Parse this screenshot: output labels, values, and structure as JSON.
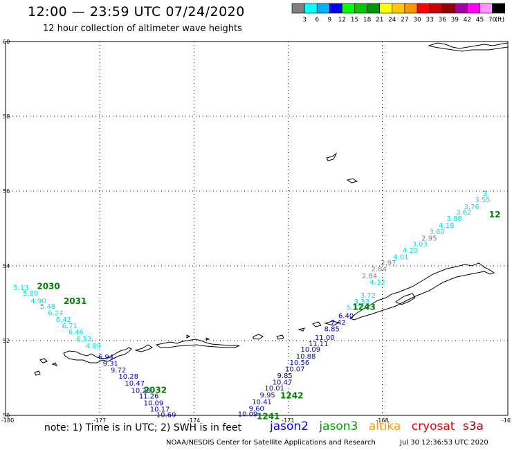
{
  "header": {
    "title": "12:00 — 23:59 UTC 07/24/2020",
    "subtitle": "12 hour collection of altimeter wave heights"
  },
  "colorbar": {
    "unit": "(ft)",
    "colors": [
      "#7f7f7f",
      "#00ffff",
      "#00b2ff",
      "#0000ff",
      "#00ff00",
      "#00c800",
      "#009600",
      "#ffff00",
      "#ffc800",
      "#ff9600",
      "#ff0000",
      "#c80000",
      "#960000",
      "#a000a0",
      "#ff00ff",
      "#ff96ff",
      "#000000"
    ],
    "labels": [
      "3",
      "6",
      "9",
      "12",
      "15",
      "18",
      "21",
      "24",
      "27",
      "30",
      "33",
      "36",
      "39",
      "42",
      "45",
      "70"
    ]
  },
  "map": {
    "lat_ticks": [
      "60",
      "58",
      "56",
      "54",
      "52",
      "50"
    ],
    "lon_ticks": [
      "-180",
      "-177",
      "-174",
      "-171",
      "-168",
      "-16"
    ]
  },
  "tracks": [
    {
      "color": "#00e0e0",
      "labels": [
        {
          "t": "5.13",
          "lon": -179.75,
          "lat": 53.35
        },
        {
          "t": "5.80",
          "lon": -179.45,
          "lat": 53.2
        },
        {
          "t": "4.90",
          "lon": -179.2,
          "lat": 53.0
        },
        {
          "t": "5.48",
          "lon": -178.9,
          "lat": 52.85
        },
        {
          "t": "6.24",
          "lon": -178.65,
          "lat": 52.68
        },
        {
          "t": "6.42",
          "lon": -178.4,
          "lat": 52.5
        },
        {
          "t": "6.71",
          "lon": -178.2,
          "lat": 52.33
        },
        {
          "t": "6.46",
          "lon": -178.0,
          "lat": 52.17
        },
        {
          "t": "6.53",
          "lon": -177.75,
          "lat": 51.98
        },
        {
          "t": "4.89",
          "lon": -177.45,
          "lat": 51.8
        }
      ]
    },
    {
      "color": "#0000c8",
      "labels": [
        {
          "t": "6.94",
          "lon": -177.05,
          "lat": 51.5
        },
        {
          "t": "9.31",
          "lon": -176.9,
          "lat": 51.32
        },
        {
          "t": "9.72",
          "lon": -176.65,
          "lat": 51.15
        },
        {
          "t": "10.28",
          "lon": -176.4,
          "lat": 50.98
        },
        {
          "t": "10.47",
          "lon": -176.2,
          "lat": 50.8
        },
        {
          "t": "10.26",
          "lon": -176.0,
          "lat": 50.6
        },
        {
          "t": "11.26",
          "lon": -175.75,
          "lat": 50.45
        },
        {
          "t": "10.09",
          "lon": -175.6,
          "lat": 50.27
        },
        {
          "t": "10.17",
          "lon": -175.4,
          "lat": 50.1
        },
        {
          "t": "10.69",
          "lon": -175.2,
          "lat": 49.95
        }
      ]
    },
    {
      "color": "#0000c8",
      "labels": [
        {
          "t": "10.09",
          "lon": -172.6,
          "lat": 49.97
        },
        {
          "t": "9.60",
          "lon": -172.25,
          "lat": 50.12
        },
        {
          "t": "10.41",
          "lon": -172.15,
          "lat": 50.3
        },
        {
          "t": "9.95",
          "lon": -171.9,
          "lat": 50.48
        },
        {
          "t": "10.01",
          "lon": -171.75,
          "lat": 50.67
        },
        {
          "t": "10.47",
          "lon": -171.5,
          "lat": 50.82
        },
        {
          "t": "9.85",
          "lon": -171.35,
          "lat": 51.0
        },
        {
          "t": "10.07",
          "lon": -171.1,
          "lat": 51.18
        },
        {
          "t": "10.56",
          "lon": -170.95,
          "lat": 51.35
        },
        {
          "t": "10.88",
          "lon": -170.75,
          "lat": 51.52
        },
        {
          "t": "10.09",
          "lon": -170.6,
          "lat": 51.7
        },
        {
          "t": "11.11",
          "lon": -170.35,
          "lat": 51.85
        },
        {
          "t": "11.00",
          "lon": -170.15,
          "lat": 52.02
        }
      ]
    },
    {
      "color": "#0000c8",
      "labels": [
        {
          "t": "8.85",
          "lon": -169.85,
          "lat": 52.25
        },
        {
          "t": "7.42",
          "lon": -169.65,
          "lat": 52.43
        },
        {
          "t": "6.40",
          "lon": -169.4,
          "lat": 52.6
        }
      ]
    },
    {
      "color": "#00e0e0",
      "labels": [
        {
          "t": "5.37",
          "lon": -169.15,
          "lat": 52.82
        },
        {
          "t": "3.33",
          "lon": -168.9,
          "lat": 52.98
        },
        {
          "t": "3.72",
          "lon": -168.7,
          "lat": 53.15
        },
        {
          "t": "4.32",
          "lon": -168.4,
          "lat": 53.5
        },
        {
          "t": "4.01",
          "lon": -167.65,
          "lat": 54.18
        },
        {
          "t": "4.20",
          "lon": -167.35,
          "lat": 54.35
        },
        {
          "t": "3.03",
          "lon": -167.05,
          "lat": 54.52
        },
        {
          "t": "3.60",
          "lon": -166.5,
          "lat": 54.85
        },
        {
          "t": "4.18",
          "lon": -166.2,
          "lat": 55.02
        },
        {
          "t": "3.88",
          "lon": -165.95,
          "lat": 55.2
        },
        {
          "t": "3.62",
          "lon": -165.65,
          "lat": 55.37
        },
        {
          "t": "3.76",
          "lon": -165.4,
          "lat": 55.52
        },
        {
          "t": "3.55",
          "lon": -165.05,
          "lat": 55.7
        },
        {
          "t": "3.",
          "lon": -164.8,
          "lat": 55.87
        }
      ]
    },
    {
      "color": "#7f7f7f",
      "labels": [
        {
          "t": "2.84",
          "lon": -168.65,
          "lat": 53.67
        },
        {
          "t": "2.84",
          "lon": -168.35,
          "lat": 53.85
        },
        {
          "t": "2.97",
          "lon": -168.05,
          "lat": 54.02
        },
        {
          "t": "2.95",
          "lon": -166.75,
          "lat": 54.68
        }
      ]
    }
  ],
  "time_labels": [
    {
      "t": "2030",
      "lon": -179.0,
      "lat": 53.38
    },
    {
      "t": "2031",
      "lon": -178.15,
      "lat": 52.98
    },
    {
      "t": "2032",
      "lon": -175.6,
      "lat": 50.6
    },
    {
      "t": "1242",
      "lon": -171.25,
      "lat": 50.45
    },
    {
      "t": "1241",
      "lon": -172.0,
      "lat": 49.9
    },
    {
      "t": "1243",
      "lon": -168.95,
      "lat": 52.82
    },
    {
      "t": "12",
      "lon": -164.6,
      "lat": 55.3
    }
  ],
  "footer": {
    "note": "note: 1) Time is in UTC; 2) SWH is in feet",
    "legend": [
      {
        "name": "jason2",
        "color": "#0000ff"
      },
      {
        "name": "jason3",
        "color": "#00a000"
      },
      {
        "name": "altika",
        "color": "#ff9600"
      },
      {
        "name": "cryosat",
        "color": "#e00000"
      },
      {
        "name": "s3a",
        "color": "#a00000"
      }
    ],
    "credit": "NOAA/NESDIS Center for Satellite Applications and Research",
    "timestamp": "Jul 30 12:36:53 UTC 2020"
  }
}
